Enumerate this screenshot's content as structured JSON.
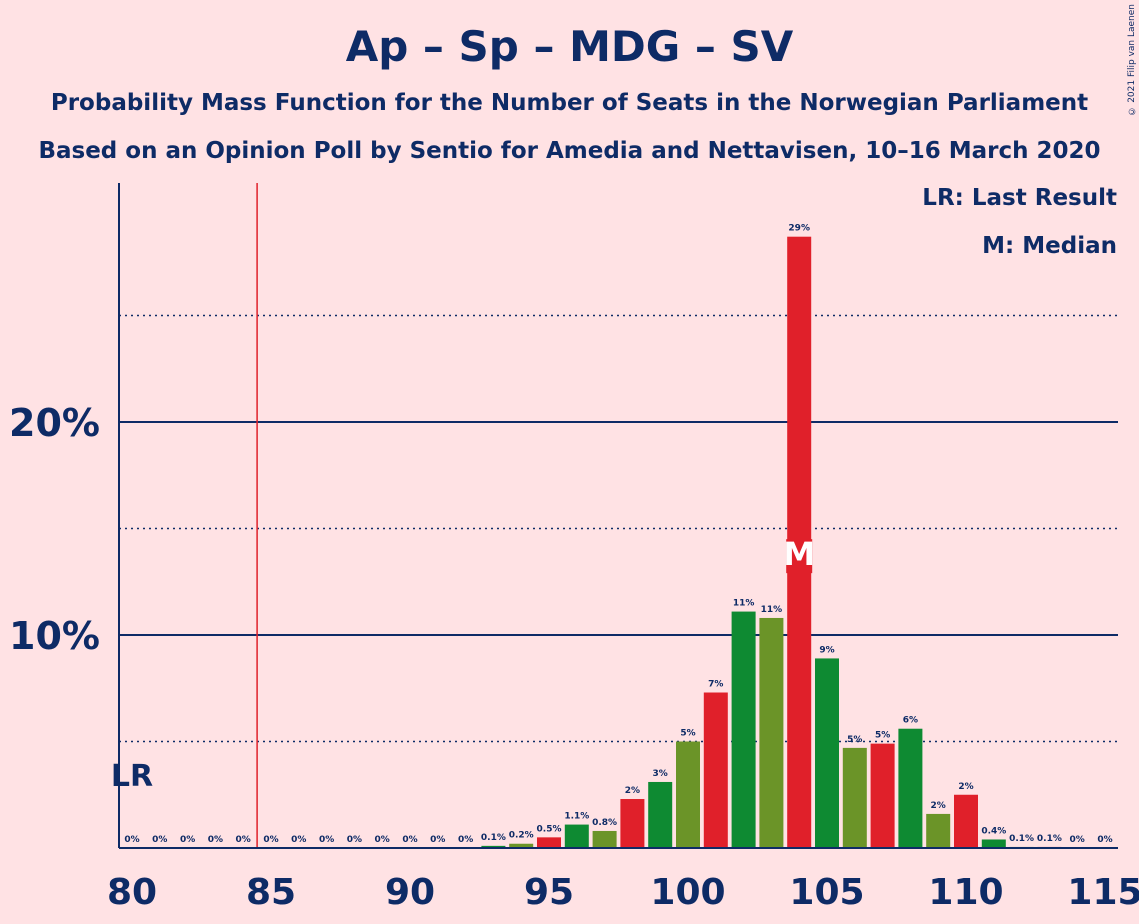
{
  "chart_data": {
    "type": "bar",
    "title": "Ap – Sp – MDG – SV",
    "subtitle": [
      "Probability Mass Function for the Number of Seats in the Norwegian Parliament",
      "Based on an Opinion Poll by Sentio for Amedia and Nettavisen, 10–16 March 2020"
    ],
    "copyright": "© 2021 Filip van Laenen",
    "legend": [
      "LR: Last Result",
      "M: Median"
    ],
    "legend_position": "top-right",
    "xlim": [
      80,
      115
    ],
    "ylim": [
      0,
      30
    ],
    "x_ticks": [
      "80",
      "85",
      "90",
      "95",
      "100",
      "105",
      "110",
      "115"
    ],
    "y_ticks": [
      {
        "value": 10,
        "label": "10%"
      },
      {
        "value": 20,
        "label": "20%"
      }
    ],
    "y_dotted_gridlines": [
      5,
      15,
      25
    ],
    "last_result": {
      "seats": 84.5,
      "label": "LR"
    },
    "median": {
      "seats": 104,
      "label": "M"
    },
    "x": [
      80,
      81,
      82,
      83,
      84,
      85,
      86,
      87,
      88,
      89,
      90,
      91,
      92,
      93,
      94,
      95,
      96,
      97,
      98,
      99,
      100,
      101,
      102,
      103,
      104,
      105,
      106,
      107,
      108,
      109,
      110,
      111,
      112,
      113,
      114,
      115
    ],
    "values": [
      0,
      0,
      0,
      0,
      0,
      0,
      0,
      0,
      0,
      0,
      0,
      0,
      0,
      0.1,
      0.2,
      0.5,
      1.1,
      0.8,
      2.3,
      3.1,
      5.0,
      7.3,
      11.1,
      10.8,
      28.7,
      8.9,
      4.7,
      4.9,
      5.6,
      1.6,
      2.5,
      0.4,
      0.05,
      0.05,
      0,
      0
    ],
    "labels": [
      "0%",
      "0%",
      "0%",
      "0%",
      "0%",
      "0%",
      "0%",
      "0%",
      "0%",
      "0%",
      "0%",
      "0%",
      "0%",
      "0.1%",
      "0.2%",
      "0.5%",
      "1.1%",
      "0.8%",
      "2%",
      "3%",
      "5%",
      "7%",
      "11%",
      "11%",
      "29%",
      "9%",
      "5%",
      "5%",
      "6%",
      "2%",
      "2%",
      "0.4%",
      "0.1%",
      "0.1%",
      "0%",
      "0%"
    ],
    "colors": {
      "red": "#E0202A",
      "green": "#0E8A32",
      "olive": "#6B9428",
      "axis": "#0E2B66",
      "last_result_line": "#E0202A"
    },
    "bar_color_cycle": [
      "red",
      "green",
      "olive"
    ]
  }
}
